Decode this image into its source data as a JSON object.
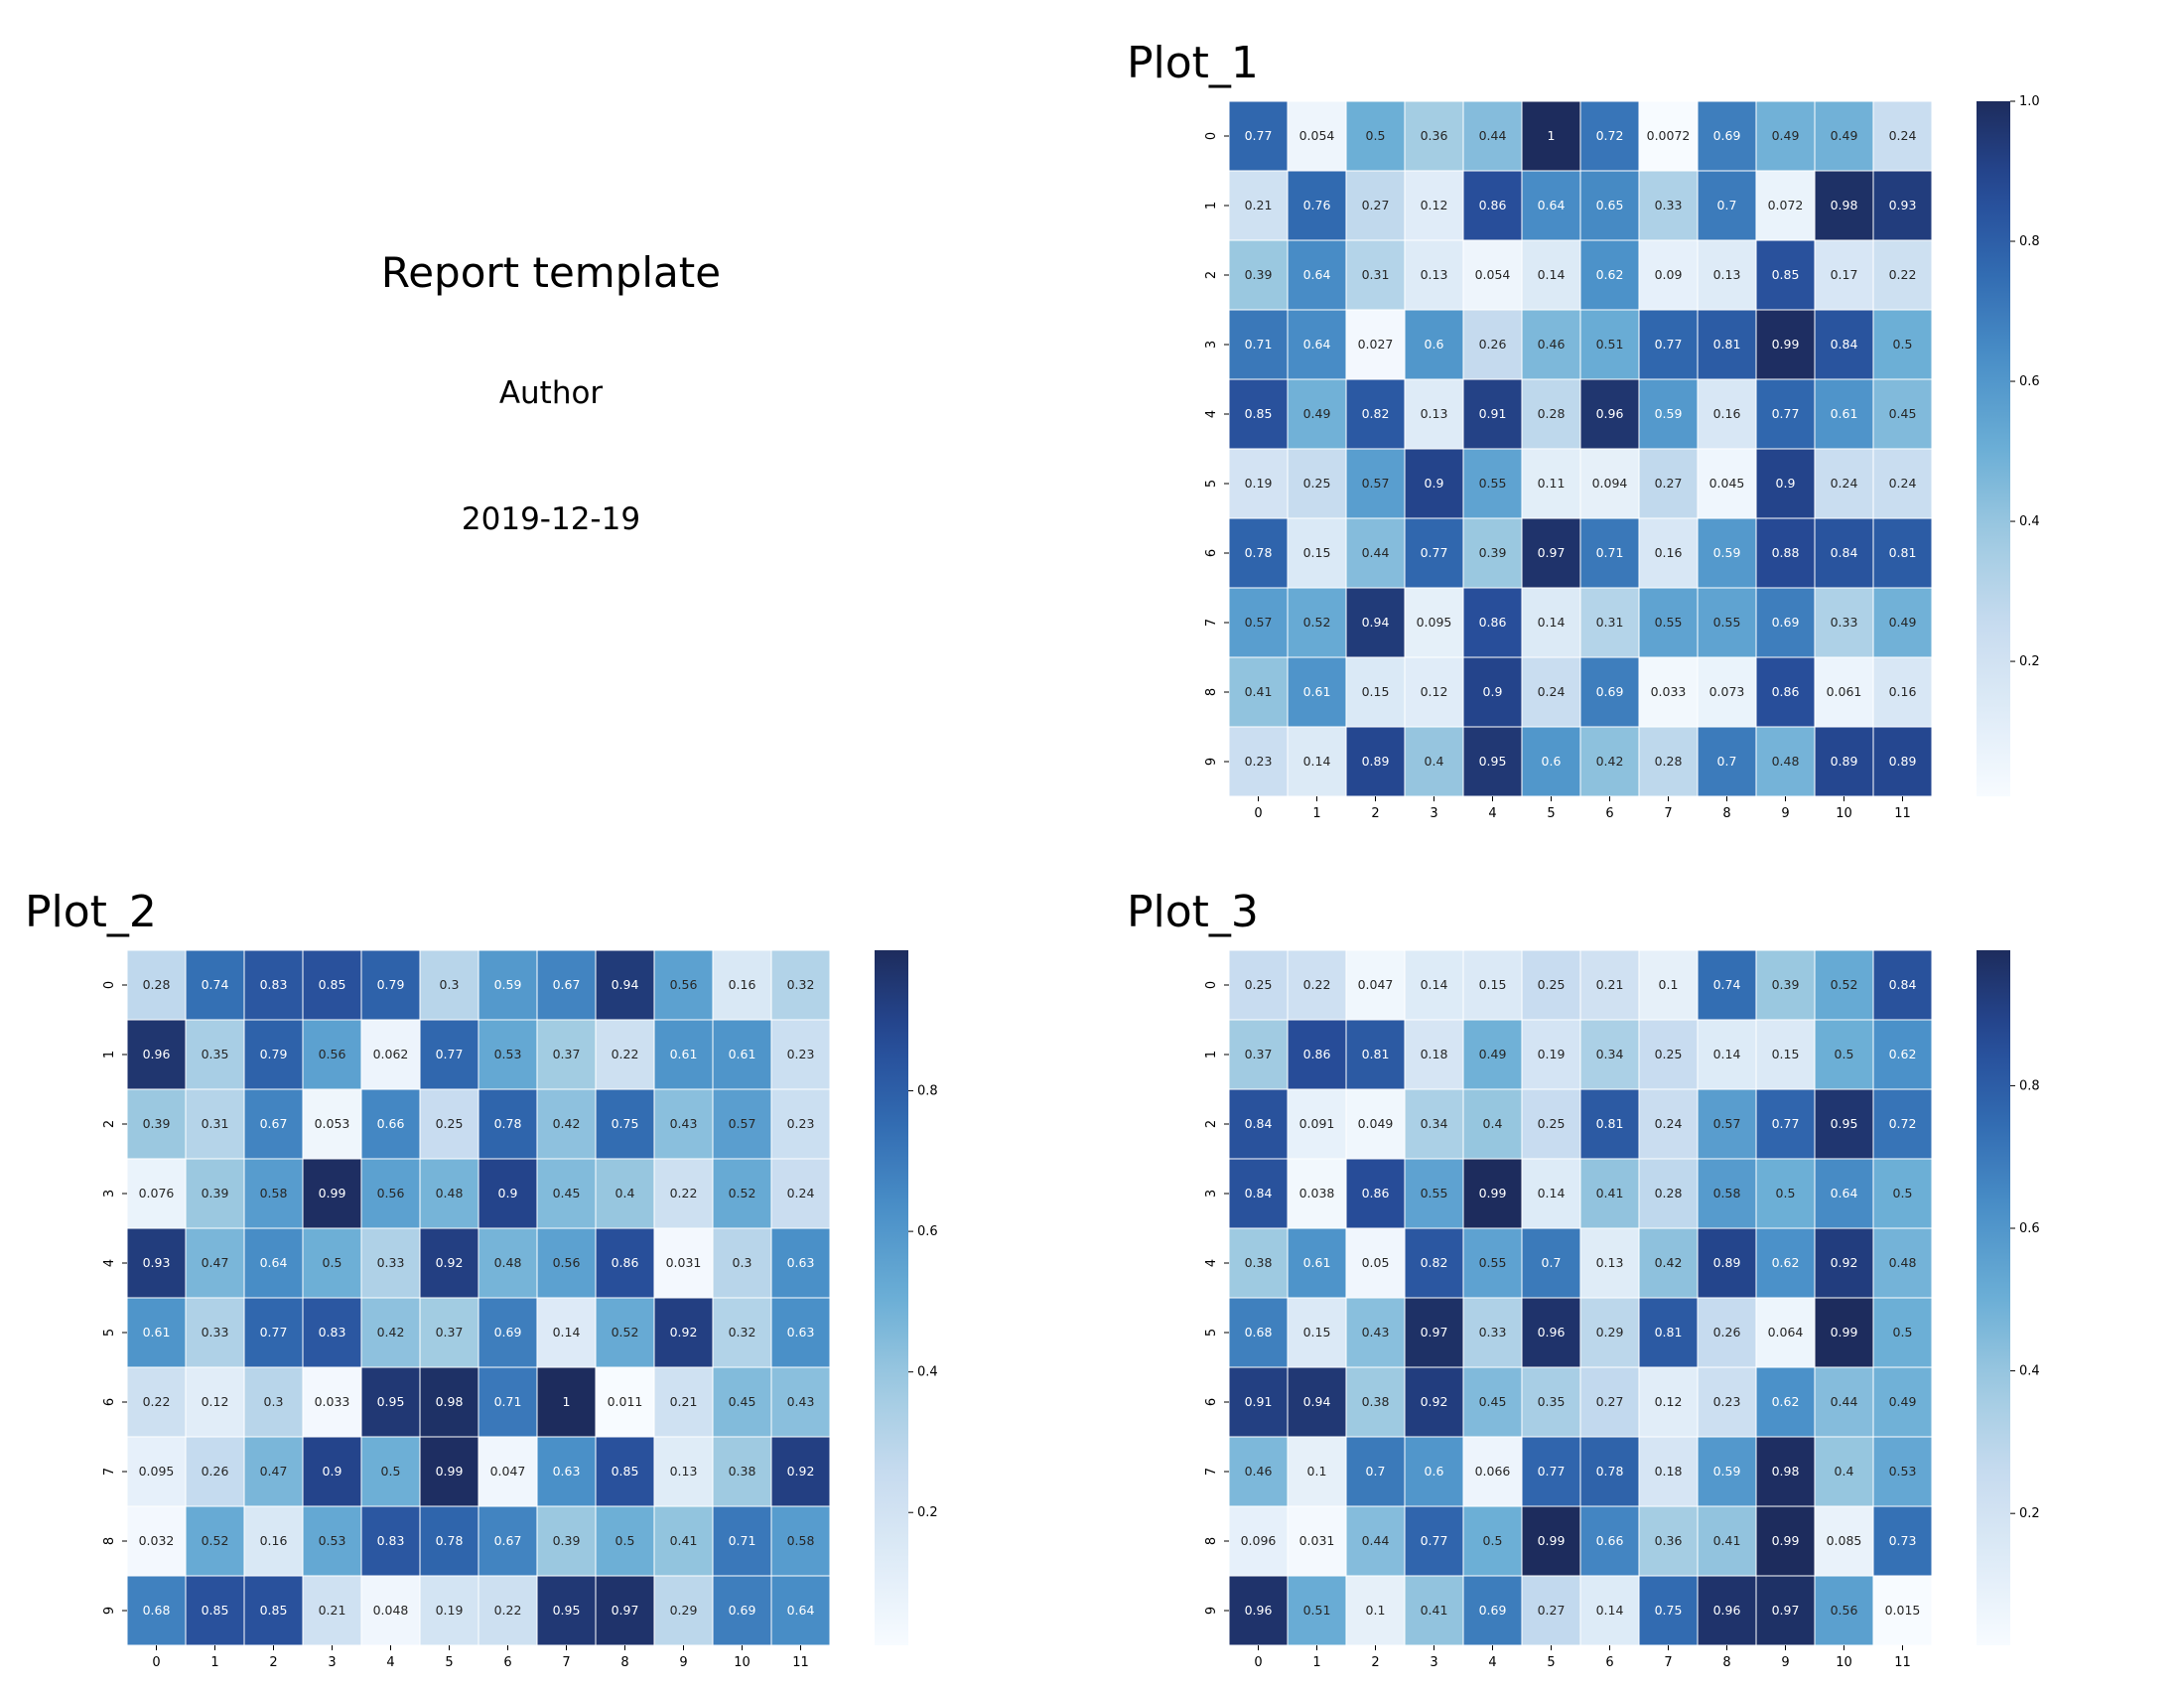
{
  "report": {
    "title": "Report template",
    "author": "Author",
    "date": "2019-12-19"
  },
  "colors": {
    "cmap_low": "#f7fbff",
    "cmap_mid": "#5b9bd0",
    "cmap_high": "#1d2c5d"
  },
  "chart_data": [
    {
      "type": "heatmap",
      "title": "Plot_1",
      "x": [
        0,
        1,
        2,
        3,
        4,
        5,
        6,
        7,
        8,
        9,
        10,
        11
      ],
      "y": [
        0,
        1,
        2,
        3,
        4,
        5,
        6,
        7,
        8,
        9
      ],
      "values": [
        [
          0.77,
          0.054,
          0.5,
          0.36,
          0.44,
          1,
          0.72,
          0.0072,
          0.69,
          0.49,
          0.49,
          0.24
        ],
        [
          0.21,
          0.76,
          0.27,
          0.12,
          0.86,
          0.64,
          0.65,
          0.33,
          0.7,
          0.072,
          0.98,
          0.93
        ],
        [
          0.39,
          0.64,
          0.31,
          0.13,
          0.054,
          0.14,
          0.62,
          0.09,
          0.13,
          0.85,
          0.17,
          0.22
        ],
        [
          0.71,
          0.64,
          0.027,
          0.6,
          0.26,
          0.46,
          0.51,
          0.77,
          0.81,
          0.99,
          0.84,
          0.5
        ],
        [
          0.85,
          0.49,
          0.82,
          0.13,
          0.91,
          0.28,
          0.96,
          0.59,
          0.16,
          0.77,
          0.61,
          0.45
        ],
        [
          0.19,
          0.25,
          0.57,
          0.9,
          0.55,
          0.11,
          0.094,
          0.27,
          0.045,
          0.9,
          0.24,
          0.24
        ],
        [
          0.78,
          0.15,
          0.44,
          0.77,
          0.39,
          0.97,
          0.71,
          0.16,
          0.59,
          0.88,
          0.84,
          0.81
        ],
        [
          0.57,
          0.52,
          0.94,
          0.095,
          0.86,
          0.14,
          0.31,
          0.55,
          0.55,
          0.69,
          0.33,
          0.49
        ],
        [
          0.41,
          0.61,
          0.15,
          0.12,
          0.9,
          0.24,
          0.69,
          0.033,
          0.073,
          0.86,
          0.061,
          0.16
        ],
        [
          0.23,
          0.14,
          0.89,
          0.4,
          0.95,
          0.6,
          0.42,
          0.28,
          0.7,
          0.48,
          0.89,
          0.89
        ]
      ],
      "colorbar": {
        "range": [
          0.0072,
          1.0
        ],
        "ticks": [
          "0.2",
          "0.4",
          "0.6",
          "0.8",
          "1.0"
        ]
      }
    },
    {
      "type": "heatmap",
      "title": "Plot_2",
      "x": [
        0,
        1,
        2,
        3,
        4,
        5,
        6,
        7,
        8,
        9,
        10,
        11
      ],
      "y": [
        0,
        1,
        2,
        3,
        4,
        5,
        6,
        7,
        8,
        9
      ],
      "values": [
        [
          0.28,
          0.74,
          0.83,
          0.85,
          0.79,
          0.3,
          0.59,
          0.67,
          0.94,
          0.56,
          0.16,
          0.32
        ],
        [
          0.96,
          0.35,
          0.79,
          0.56,
          0.062,
          0.77,
          0.53,
          0.37,
          0.22,
          0.61,
          0.61,
          0.23
        ],
        [
          0.39,
          0.31,
          0.67,
          0.053,
          0.66,
          0.25,
          0.78,
          0.42,
          0.75,
          0.43,
          0.57,
          0.23
        ],
        [
          0.076,
          0.39,
          0.58,
          0.99,
          0.56,
          0.48,
          0.9,
          0.45,
          0.4,
          0.22,
          0.52,
          0.24
        ],
        [
          0.93,
          0.47,
          0.64,
          0.5,
          0.33,
          0.92,
          0.48,
          0.56,
          0.86,
          0.031,
          0.3,
          0.63
        ],
        [
          0.61,
          0.33,
          0.77,
          0.83,
          0.42,
          0.37,
          0.69,
          0.14,
          0.52,
          0.92,
          0.32,
          0.63
        ],
        [
          0.22,
          0.12,
          0.3,
          0.033,
          0.95,
          0.98,
          0.71,
          1,
          0.011,
          0.21,
          0.45,
          0.43
        ],
        [
          0.095,
          0.26,
          0.47,
          0.9,
          0.5,
          0.99,
          0.047,
          0.63,
          0.85,
          0.13,
          0.38,
          0.92
        ],
        [
          0.032,
          0.52,
          0.16,
          0.53,
          0.83,
          0.78,
          0.67,
          0.39,
          0.5,
          0.41,
          0.71,
          0.58
        ],
        [
          0.68,
          0.85,
          0.85,
          0.21,
          0.048,
          0.19,
          0.22,
          0.95,
          0.97,
          0.29,
          0.69,
          0.64
        ]
      ],
      "colorbar": {
        "range": [
          0.011,
          1.0
        ],
        "ticks": [
          "0.2",
          "0.4",
          "0.6",
          "0.8"
        ]
      }
    },
    {
      "type": "heatmap",
      "title": "Plot_3",
      "x": [
        0,
        1,
        2,
        3,
        4,
        5,
        6,
        7,
        8,
        9,
        10,
        11
      ],
      "y": [
        0,
        1,
        2,
        3,
        4,
        5,
        6,
        7,
        8,
        9
      ],
      "values": [
        [
          0.25,
          0.22,
          0.047,
          0.14,
          0.15,
          0.25,
          0.21,
          0.1,
          0.74,
          0.39,
          0.52,
          0.84
        ],
        [
          0.37,
          0.86,
          0.81,
          0.18,
          0.49,
          0.19,
          0.34,
          0.25,
          0.14,
          0.15,
          0.5,
          0.62
        ],
        [
          0.84,
          0.091,
          0.049,
          0.34,
          0.4,
          0.25,
          0.81,
          0.24,
          0.57,
          0.77,
          0.95,
          0.72
        ],
        [
          0.84,
          0.038,
          0.86,
          0.55,
          0.99,
          0.14,
          0.41,
          0.28,
          0.58,
          0.5,
          0.64,
          0.5
        ],
        [
          0.38,
          0.61,
          0.05,
          0.82,
          0.55,
          0.7,
          0.13,
          0.42,
          0.89,
          0.62,
          0.92,
          0.48
        ],
        [
          0.68,
          0.15,
          0.43,
          0.97,
          0.33,
          0.96,
          0.29,
          0.81,
          0.26,
          0.064,
          0.99,
          0.5
        ],
        [
          0.91,
          0.94,
          0.38,
          0.92,
          0.45,
          0.35,
          0.27,
          0.12,
          0.23,
          0.62,
          0.44,
          0.49
        ],
        [
          0.46,
          0.1,
          0.7,
          0.6,
          0.066,
          0.77,
          0.78,
          0.18,
          0.59,
          0.98,
          0.4,
          0.53
        ],
        [
          0.096,
          0.031,
          0.44,
          0.77,
          0.5,
          0.99,
          0.66,
          0.36,
          0.41,
          0.99,
          0.085,
          0.73
        ],
        [
          0.96,
          0.51,
          0.1,
          0.41,
          0.69,
          0.27,
          0.14,
          0.75,
          0.96,
          0.97,
          0.56,
          0.015
        ]
      ],
      "colorbar": {
        "range": [
          0.015,
          0.99
        ],
        "ticks": [
          "0.2",
          "0.4",
          "0.6",
          "0.8"
        ]
      }
    }
  ]
}
